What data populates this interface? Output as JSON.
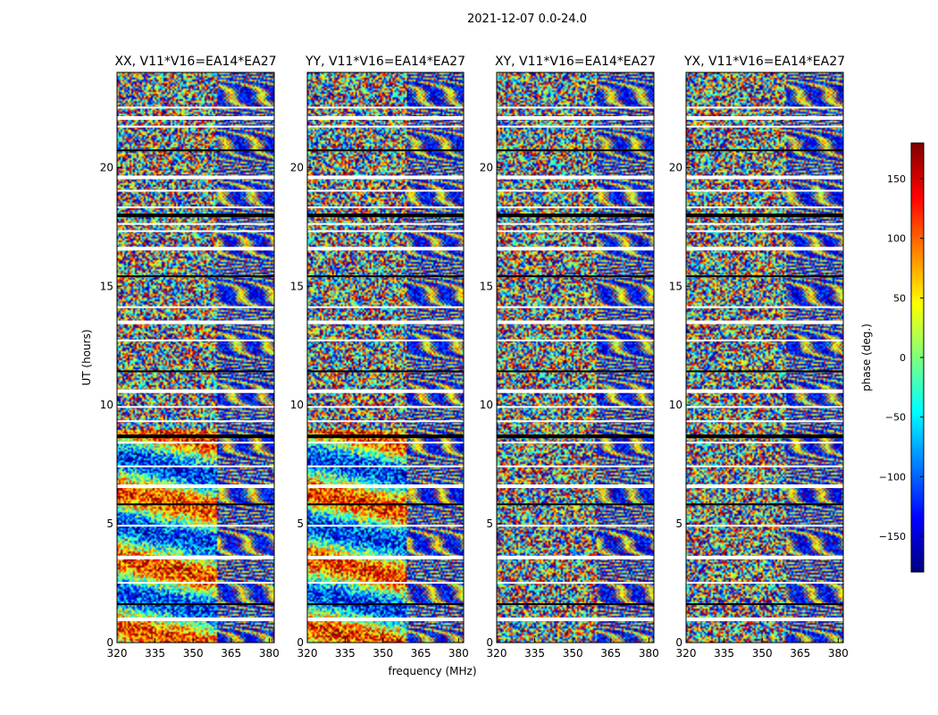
{
  "figure": {
    "suptitle": "2021-12-07 0.0-24.0",
    "xlabel": "frequency (MHz)",
    "ylabel": "UT (hours)"
  },
  "colorbar": {
    "label": "phase (deg.)",
    "min": -180,
    "max": 180,
    "ticks": [
      150,
      100,
      50,
      0,
      -50,
      -100,
      -150
    ],
    "tick_labels": [
      "150",
      "100",
      "50",
      "0",
      "−50",
      "−100",
      "−150"
    ],
    "colormap": [
      "#00007f",
      "#0000ff",
      "#007fff",
      "#00ffff",
      "#7fff7f",
      "#ffff00",
      "#ff7f00",
      "#ff0000",
      "#7f0000"
    ]
  },
  "chart_data": [
    {
      "type": "heatmap",
      "title": "XX, V11*V16=EA14*EA27",
      "xlim": [
        320,
        382
      ],
      "ylim": [
        0,
        24
      ],
      "xticks": [
        320,
        335,
        350,
        365,
        380
      ],
      "yticks": [
        0,
        5,
        10,
        15,
        20
      ],
      "value_range": [
        -180,
        180
      ]
    },
    {
      "type": "heatmap",
      "title": "YY, V11*V16=EA14*EA27",
      "xlim": [
        320,
        382
      ],
      "ylim": [
        0,
        24
      ],
      "xticks": [
        320,
        335,
        350,
        365,
        380
      ],
      "yticks": [
        0,
        5,
        10,
        15,
        20
      ],
      "value_range": [
        -180,
        180
      ]
    },
    {
      "type": "heatmap",
      "title": "XY, V11*V16=EA14*EA27",
      "xlim": [
        320,
        382
      ],
      "ylim": [
        0,
        24
      ],
      "xticks": [
        320,
        335,
        350,
        365,
        380
      ],
      "yticks": [
        0,
        5,
        10,
        15,
        20
      ],
      "value_range": [
        -180,
        180
      ]
    },
    {
      "type": "heatmap",
      "title": "YX, V11*V16=EA14*EA27",
      "xlim": [
        320,
        382
      ],
      "ylim": [
        0,
        24
      ],
      "xticks": [
        320,
        335,
        350,
        365,
        380
      ],
      "yticks": [
        0,
        5,
        10,
        15,
        20
      ],
      "value_range": [
        -180,
        180
      ]
    }
  ]
}
